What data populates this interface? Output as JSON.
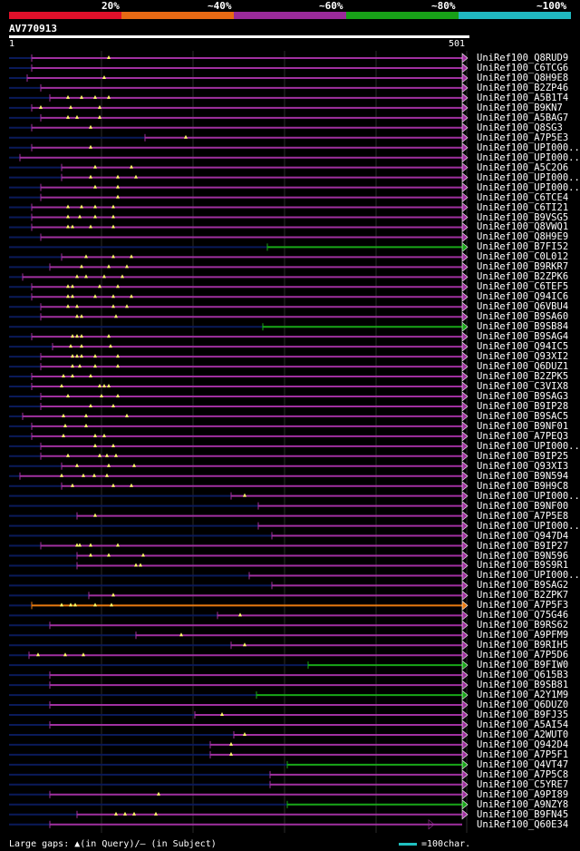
{
  "legend": {
    "labels": [
      "20%",
      "~40%",
      "~60%",
      "~80%",
      "~100%"
    ],
    "colors": [
      "#e0102a",
      "#e86a14",
      "#9a2a9a",
      "#18a018",
      "#20b8c0"
    ]
  },
  "query": {
    "name": "AV770913",
    "start": "1",
    "end": "501"
  },
  "hits": [
    {
      "name": "UniRef100_Q8RUD9",
      "start": 35,
      "color": "purple",
      "ticks": [
        120
      ],
      "arrow": true
    },
    {
      "name": "UniRef100_C6TCG6",
      "start": 35,
      "color": "purple",
      "ticks": [],
      "arrow": true
    },
    {
      "name": "UniRef100_Q8H9E8",
      "start": 30,
      "color": "purple",
      "ticks": [
        115
      ],
      "arrow": true
    },
    {
      "name": "UniRef100_B2ZP46",
      "start": 45,
      "color": "purple",
      "ticks": [],
      "arrow": true
    },
    {
      "name": "UniRef100_A5B1T4",
      "start": 55,
      "color": "purple",
      "ticks": [
        75,
        90,
        105,
        120
      ],
      "arrow": true
    },
    {
      "name": "UniRef100_B9KN7",
      "start": 35,
      "color": "purple",
      "ticks": [
        45,
        78,
        110
      ],
      "arrow": true
    },
    {
      "name": "UniRef100_A5BAG7",
      "start": 45,
      "color": "purple",
      "ticks": [
        75,
        85,
        110
      ],
      "arrow": true
    },
    {
      "name": "UniRef100_Q8SG3",
      "start": 35,
      "color": "purple",
      "ticks": [
        100
      ],
      "arrow": true
    },
    {
      "name": "UniRef100_A7P5E3",
      "start": 160,
      "color": "purple",
      "ticks": [
        205
      ],
      "arrow": true
    },
    {
      "name": "UniRef100_UPI000..",
      "start": 35,
      "color": "purple",
      "ticks": [
        100
      ],
      "arrow": true
    },
    {
      "name": "UniRef100_UPI000..",
      "start": 22,
      "color": "purple",
      "ticks": [],
      "arrow": true
    },
    {
      "name": "UniRef100_A5C2O6",
      "start": 68,
      "color": "purple",
      "ticks": [
        105,
        145
      ],
      "arrow": true
    },
    {
      "name": "UniRef100_UPI000..",
      "start": 68,
      "color": "purple",
      "ticks": [
        100,
        130,
        150
      ],
      "arrow": true
    },
    {
      "name": "UniRef100_UPI000..",
      "start": 45,
      "color": "purple",
      "ticks": [
        105,
        130
      ],
      "arrow": true
    },
    {
      "name": "UniRef100_C6TCE4",
      "start": 45,
      "color": "purple",
      "ticks": [
        130
      ],
      "arrow": true
    },
    {
      "name": "UniRef100_C6TI21",
      "start": 35,
      "color": "purple",
      "ticks": [
        75,
        90,
        105,
        125
      ],
      "arrow": true
    },
    {
      "name": "UniRef100_B9VSG5",
      "start": 35,
      "color": "purple",
      "ticks": [
        75,
        88,
        105,
        125
      ],
      "arrow": true
    },
    {
      "name": "UniRef100_Q8VWQ1",
      "start": 35,
      "color": "purple",
      "ticks": [
        75,
        80,
        100,
        125
      ],
      "arrow": true
    },
    {
      "name": "UniRef100_Q8H9E9",
      "start": 45,
      "color": "purple",
      "ticks": [],
      "arrow": true
    },
    {
      "name": "UniRef100_B7FI52",
      "start": 295,
      "color": "green",
      "ticks": [],
      "arrow": true
    },
    {
      "name": "UniRef100_C0L012",
      "start": 68,
      "color": "purple",
      "ticks": [
        95,
        125,
        145
      ],
      "arrow": true
    },
    {
      "name": "UniRef100_B9RKR7",
      "start": 55,
      "color": "purple",
      "ticks": [
        90,
        120,
        140
      ],
      "arrow": true
    },
    {
      "name": "UniRef100_B2ZPK6",
      "start": 25,
      "color": "purple",
      "ticks": [
        85,
        95,
        115,
        135
      ],
      "arrow": true
    },
    {
      "name": "UniRef100_C6TEF5",
      "start": 35,
      "color": "purple",
      "ticks": [
        75,
        80,
        110,
        130
      ],
      "arrow": true
    },
    {
      "name": "UniRef100_Q94IC6",
      "start": 35,
      "color": "purple",
      "ticks": [
        75,
        80,
        105,
        125,
        145
      ],
      "arrow": true
    },
    {
      "name": "UniRef100_Q6VBU4",
      "start": 45,
      "color": "purple",
      "ticks": [
        75,
        85,
        125,
        140
      ],
      "arrow": true
    },
    {
      "name": "UniRef100_B9SA60",
      "start": 45,
      "color": "purple",
      "ticks": [
        85,
        90,
        128
      ],
      "arrow": true
    },
    {
      "name": "UniRef100_B9SB84",
      "start": 290,
      "color": "green",
      "ticks": [],
      "arrow": true
    },
    {
      "name": "UniRef100_B9SAG4",
      "start": 35,
      "color": "purple",
      "ticks": [
        80,
        85,
        90,
        120
      ],
      "arrow": true
    },
    {
      "name": "UniRef100_Q94IC5",
      "start": 58,
      "color": "purple",
      "ticks": [
        78,
        90,
        122
      ],
      "arrow": true
    },
    {
      "name": "UniRef100_Q93XI2",
      "start": 45,
      "color": "purple",
      "ticks": [
        80,
        85,
        90,
        105,
        130
      ],
      "arrow": true
    },
    {
      "name": "UniRef100_Q6DUZ1",
      "start": 45,
      "color": "purple",
      "ticks": [
        80,
        88,
        105,
        130
      ],
      "arrow": true
    },
    {
      "name": "UniRef100_B2ZPK5",
      "start": 35,
      "color": "purple",
      "ticks": [
        70,
        80,
        100
      ],
      "arrow": true
    },
    {
      "name": "UniRef100_C3VIX8",
      "start": 35,
      "color": "purple",
      "ticks": [
        68,
        110,
        115,
        120
      ],
      "arrow": true
    },
    {
      "name": "UniRef100_B9SAG3",
      "start": 45,
      "color": "purple",
      "ticks": [
        75,
        112,
        130
      ],
      "arrow": true
    },
    {
      "name": "UniRef100_B9IP28",
      "start": 45,
      "color": "purple",
      "ticks": [
        100,
        125
      ],
      "arrow": true
    },
    {
      "name": "UniRef100_B9SAC5",
      "start": 25,
      "color": "purple",
      "ticks": [
        70,
        95,
        140
      ],
      "arrow": true
    },
    {
      "name": "UniRef100_B9NF01",
      "start": 35,
      "color": "purple",
      "ticks": [
        72,
        95
      ],
      "arrow": true
    },
    {
      "name": "UniRef100_A7PEQ3",
      "start": 35,
      "color": "purple",
      "ticks": [
        70,
        105,
        115
      ],
      "arrow": true
    },
    {
      "name": "UniRef100_UPI000..",
      "start": 45,
      "color": "purple",
      "ticks": [
        105,
        125
      ],
      "arrow": true
    },
    {
      "name": "UniRef100_B9IP25",
      "start": 45,
      "color": "purple",
      "ticks": [
        75,
        110,
        118,
        128
      ],
      "arrow": true
    },
    {
      "name": "UniRef100_Q93XI3",
      "start": 68,
      "color": "purple",
      "ticks": [
        85,
        120,
        148
      ],
      "arrow": true
    },
    {
      "name": "UniRef100_B9N594",
      "start": 22,
      "color": "purple",
      "ticks": [
        68,
        92,
        104,
        118
      ],
      "arrow": true
    },
    {
      "name": "UniRef100_B9H9C8",
      "start": 68,
      "color": "purple",
      "ticks": [
        80,
        125,
        145
      ],
      "arrow": true
    },
    {
      "name": "UniRef100_UPI000..",
      "start": 255,
      "color": "purple",
      "ticks": [
        270
      ],
      "arrow": true
    },
    {
      "name": "UniRef100_B9NF00",
      "start": 285,
      "color": "purple",
      "ticks": [],
      "arrow": true
    },
    {
      "name": "UniRef100_A7P5E8",
      "start": 85,
      "color": "purple",
      "ticks": [
        105
      ],
      "arrow": true
    },
    {
      "name": "UniRef100_UPI000..",
      "start": 285,
      "color": "purple",
      "ticks": [],
      "arrow": true
    },
    {
      "name": "UniRef100_Q947D4",
      "start": 300,
      "color": "purple",
      "ticks": [],
      "arrow": true
    },
    {
      "name": "UniRef100_B9IP27",
      "start": 45,
      "color": "purple",
      "ticks": [
        85,
        88,
        100,
        130
      ],
      "arrow": true
    },
    {
      "name": "UniRef100_B9N596",
      "start": 85,
      "color": "purple",
      "ticks": [
        100,
        120,
        158
      ],
      "arrow": true
    },
    {
      "name": "UniRef100_B9S9R1",
      "start": 85,
      "color": "purple",
      "ticks": [
        150,
        155
      ],
      "arrow": true
    },
    {
      "name": "UniRef100_UPI000..",
      "start": 275,
      "color": "purple",
      "ticks": [],
      "arrow": true
    },
    {
      "name": "UniRef100_B9SAG2",
      "start": 300,
      "color": "purple",
      "ticks": [],
      "arrow": true
    },
    {
      "name": "UniRef100_B2ZPK7",
      "start": 98,
      "color": "purple",
      "ticks": [
        125
      ],
      "arrow": true
    },
    {
      "name": "UniRef100_A7P5F3",
      "start": 35,
      "color": "orange",
      "ticks": [
        68,
        78,
        83,
        105,
        123
      ],
      "arrow": true
    },
    {
      "name": "UniRef100_Q75G46",
      "start": 240,
      "color": "purple",
      "ticks": [
        265
      ],
      "arrow": true
    },
    {
      "name": "UniRef100_B9RS62",
      "start": 55,
      "color": "purple",
      "ticks": [],
      "arrow": true
    },
    {
      "name": "UniRef100_A9PFM9",
      "start": 150,
      "color": "purple",
      "ticks": [
        200
      ],
      "arrow": true
    },
    {
      "name": "UniRef100_B9RIH5",
      "start": 255,
      "color": "purple",
      "ticks": [
        270
      ],
      "arrow": true
    },
    {
      "name": "UniRef100_A7P5D6",
      "start": 32,
      "color": "purple",
      "ticks": [
        42,
        72,
        92
      ],
      "arrow": true
    },
    {
      "name": "UniRef100_B9FIW0",
      "start": 340,
      "color": "green",
      "ticks": [],
      "arrow": true
    },
    {
      "name": "UniRef100_Q615B3",
      "start": 55,
      "color": "purple",
      "ticks": [],
      "arrow": true
    },
    {
      "name": "UniRef100_B9SB81",
      "start": 55,
      "color": "purple",
      "ticks": [],
      "arrow": true
    },
    {
      "name": "UniRef100_A2Y1M9",
      "start": 283,
      "color": "green",
      "ticks": [],
      "arrow": true
    },
    {
      "name": "UniRef100_Q6DUZ0",
      "start": 55,
      "color": "purple",
      "ticks": [],
      "arrow": true
    },
    {
      "name": "UniRef100_B9FJ35",
      "start": 215,
      "color": "purple",
      "ticks": [
        245
      ],
      "arrow": true
    },
    {
      "name": "UniRef100_A5AI54",
      "start": 55,
      "color": "purple",
      "ticks": [],
      "arrow": true
    },
    {
      "name": "UniRef100_A2WUT0",
      "start": 258,
      "color": "purple",
      "ticks": [
        270
      ],
      "arrow": true
    },
    {
      "name": "UniRef100_Q942D4",
      "start": 232,
      "color": "purple",
      "ticks": [
        255
      ],
      "arrow": true
    },
    {
      "name": "UniRef100_A7P5F1",
      "start": 232,
      "color": "purple",
      "ticks": [
        255
      ],
      "arrow": true
    },
    {
      "name": "UniRef100_Q4VT47",
      "start": 317,
      "color": "green",
      "ticks": [],
      "arrow": true
    },
    {
      "name": "UniRef100_A7P5C8",
      "start": 298,
      "color": "purple",
      "ticks": [],
      "arrow": true
    },
    {
      "name": "UniRef100_C5YRE7",
      "start": 298,
      "color": "purple",
      "ticks": [],
      "arrow": true
    },
    {
      "name": "UniRef100_A9PI89",
      "start": 55,
      "color": "purple",
      "ticks": [
        175
      ],
      "arrow": true
    },
    {
      "name": "UniRef100_A9NZY8",
      "start": 317,
      "color": "green",
      "ticks": [],
      "arrow": true
    },
    {
      "name": "UniRef100_B9FN45",
      "start": 85,
      "color": "purple",
      "ticks": [
        128,
        138,
        148,
        172
      ],
      "arrow": true
    },
    {
      "name": "UniRef100_Q60E34",
      "start": 55,
      "color": "purple",
      "ticks": [],
      "arrow": false
    }
  ],
  "footer": {
    "left": "Large gaps: ▲(in Query)/— (in Subject)",
    "right": "=100char."
  }
}
